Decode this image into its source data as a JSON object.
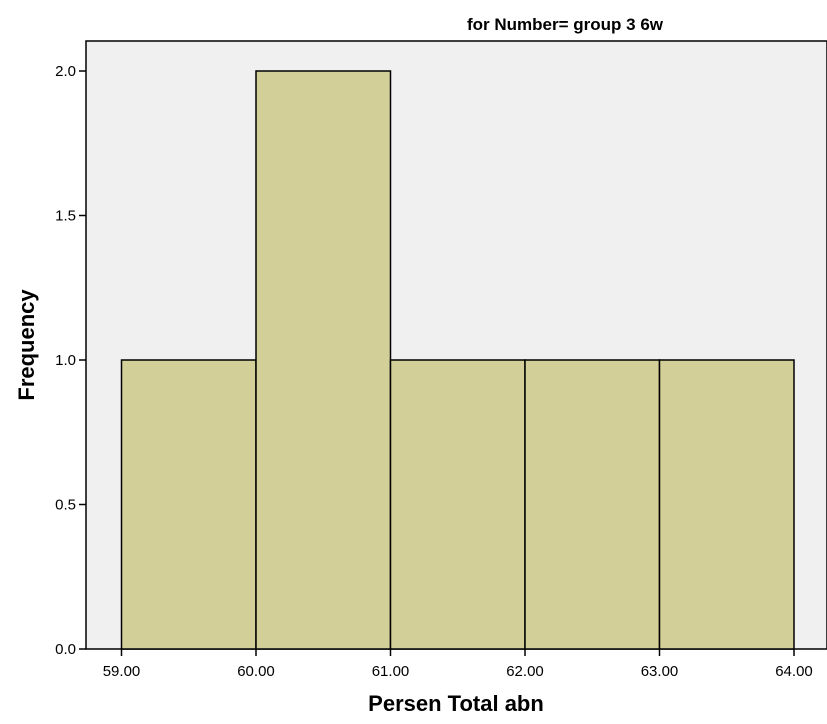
{
  "chart_data": {
    "type": "bar",
    "title": "for Number= group 3 6w",
    "xlabel": "Persen Total abn",
    "ylabel": "Frequency",
    "bins": [
      {
        "start": 59.0,
        "end": 60.0,
        "value": 1
      },
      {
        "start": 60.0,
        "end": 61.0,
        "value": 2
      },
      {
        "start": 61.0,
        "end": 62.0,
        "value": 1
      },
      {
        "start": 62.0,
        "end": 63.0,
        "value": 1
      },
      {
        "start": 63.0,
        "end": 64.0,
        "value": 1
      }
    ],
    "x_ticks": [
      "59.00",
      "60.00",
      "61.00",
      "62.00",
      "63.00",
      "64.00"
    ],
    "y_ticks": [
      "0.0",
      "0.5",
      "1.0",
      "1.5",
      "2.0"
    ],
    "xlim": [
      58.75,
      64.25
    ],
    "ylim": [
      0,
      2.2
    ],
    "grid": false,
    "colors": {
      "bar_fill": "#d3cf99",
      "bar_stroke": "#000000",
      "plot_background": "#f0f0f0"
    }
  }
}
